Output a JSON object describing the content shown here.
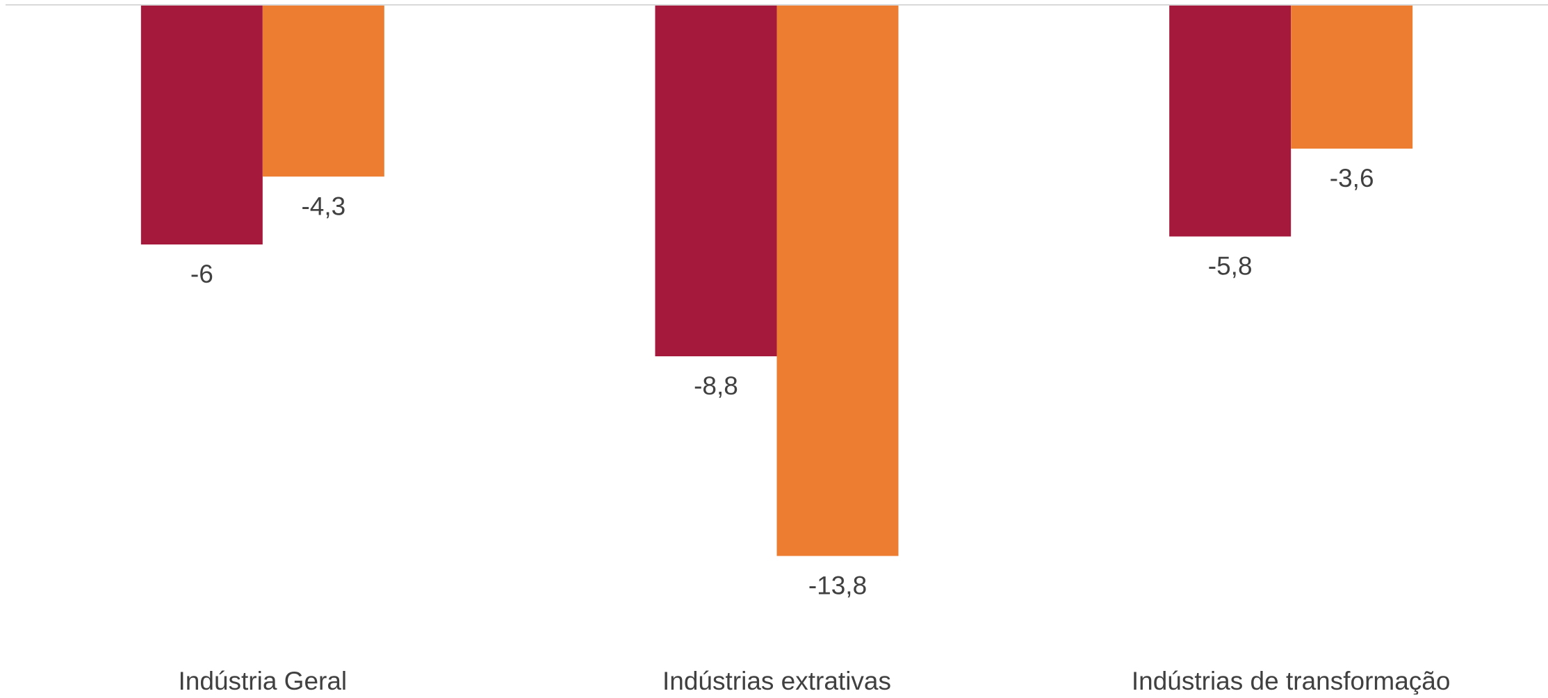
{
  "chart_data": {
    "type": "bar",
    "categories": [
      "Indústria Geral",
      "Indústrias extrativas",
      "Indústrias de transformação"
    ],
    "series": [
      {
        "values": [
          -6,
          -8.8,
          -5.8
        ],
        "labels": [
          "-6",
          "-8,8",
          "-5,8"
        ],
        "color": "#A51A3C"
      },
      {
        "values": [
          -4.3,
          -13.8,
          -3.6
        ],
        "labels": [
          "-4,3",
          "-13,8",
          "-3,6"
        ],
        "color": "#ED7D31"
      }
    ],
    "title": "",
    "xlabel": "",
    "ylabel": "",
    "ylim": [
      -13.8,
      0
    ],
    "grid": false,
    "legend": "none",
    "data_labels": true,
    "axis_color": "#D9D9D9",
    "text_color": "#404040"
  }
}
